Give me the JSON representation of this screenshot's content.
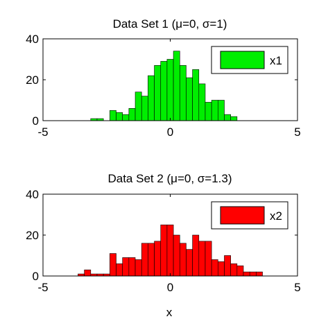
{
  "chart_data": [
    {
      "type": "bar",
      "title": "Data Set 1 (μ=0, σ=1)",
      "xlabel": "",
      "ylabel": "",
      "xlim": [
        -5,
        5
      ],
      "ylim": [
        0,
        40
      ],
      "xticks": [
        -5,
        0,
        5
      ],
      "yticks": [
        0,
        20,
        40
      ],
      "legend": {
        "placement": "top-right",
        "label": "x1"
      },
      "color": "#00ee00",
      "bin_width": 0.25,
      "bins": [
        {
          "x": -3.0,
          "y": 1
        },
        {
          "x": -2.75,
          "y": 1
        },
        {
          "x": -2.25,
          "y": 5
        },
        {
          "x": -2.0,
          "y": 4
        },
        {
          "x": -1.75,
          "y": 3
        },
        {
          "x": -1.5,
          "y": 6
        },
        {
          "x": -1.25,
          "y": 14
        },
        {
          "x": -1.0,
          "y": 12
        },
        {
          "x": -0.75,
          "y": 22
        },
        {
          "x": -0.5,
          "y": 27
        },
        {
          "x": -0.25,
          "y": 29
        },
        {
          "x": 0.0,
          "y": 30
        },
        {
          "x": 0.25,
          "y": 34
        },
        {
          "x": 0.5,
          "y": 27
        },
        {
          "x": 0.75,
          "y": 21
        },
        {
          "x": 1.0,
          "y": 25
        },
        {
          "x": 1.25,
          "y": 18
        },
        {
          "x": 1.5,
          "y": 9
        },
        {
          "x": 1.75,
          "y": 10
        },
        {
          "x": 2.0,
          "y": 10
        },
        {
          "x": 2.25,
          "y": 3
        },
        {
          "x": 2.5,
          "y": 2
        }
      ]
    },
    {
      "type": "bar",
      "title": "Data Set 2 (μ=0, σ=1.3)",
      "xlabel": "x",
      "ylabel": "",
      "xlim": [
        -5,
        5
      ],
      "ylim": [
        0,
        40
      ],
      "xticks": [
        -5,
        0,
        5
      ],
      "yticks": [
        0,
        20,
        40
      ],
      "legend": {
        "placement": "top-right",
        "label": "x2"
      },
      "color": "#ff0000",
      "bin_width": 0.25,
      "bins": [
        {
          "x": -3.5,
          "y": 1
        },
        {
          "x": -3.25,
          "y": 3
        },
        {
          "x": -3.0,
          "y": 1
        },
        {
          "x": -2.75,
          "y": 1
        },
        {
          "x": -2.5,
          "y": 1
        },
        {
          "x": -2.25,
          "y": 11
        },
        {
          "x": -2.0,
          "y": 6
        },
        {
          "x": -1.75,
          "y": 9
        },
        {
          "x": -1.5,
          "y": 9
        },
        {
          "x": -1.25,
          "y": 8
        },
        {
          "x": -1.0,
          "y": 16
        },
        {
          "x": -0.75,
          "y": 16
        },
        {
          "x": -0.5,
          "y": 17
        },
        {
          "x": -0.25,
          "y": 25
        },
        {
          "x": 0.0,
          "y": 25
        },
        {
          "x": 0.25,
          "y": 20
        },
        {
          "x": 0.5,
          "y": 16
        },
        {
          "x": 0.75,
          "y": 13
        },
        {
          "x": 1.0,
          "y": 20
        },
        {
          "x": 1.25,
          "y": 17
        },
        {
          "x": 1.5,
          "y": 17
        },
        {
          "x": 1.75,
          "y": 8
        },
        {
          "x": 2.0,
          "y": 7
        },
        {
          "x": 2.25,
          "y": 10
        },
        {
          "x": 2.5,
          "y": 6
        },
        {
          "x": 2.75,
          "y": 5
        },
        {
          "x": 3.0,
          "y": 2
        },
        {
          "x": 3.25,
          "y": 2
        },
        {
          "x": 3.5,
          "y": 2
        }
      ]
    }
  ]
}
